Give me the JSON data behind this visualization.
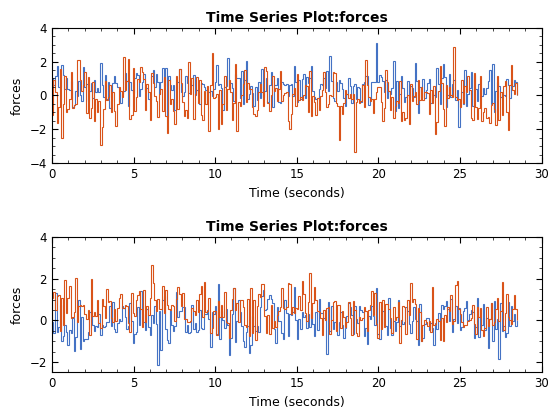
{
  "title": "Time Series Plot:forces",
  "xlabel": "Time (seconds)",
  "ylabel": "forces",
  "xlim": [
    0,
    30
  ],
  "ylim1": [
    -4,
    4
  ],
  "ylim2": [
    -2.5,
    4
  ],
  "yticks1": [
    -4,
    -2,
    0,
    2,
    4
  ],
  "yticks2": [
    -2,
    0,
    2,
    4
  ],
  "color1": "#4472c4",
  "color2": "#d95319",
  "n_points": 300,
  "seed1": 42,
  "seed2": 123,
  "seed3": 5,
  "seed4": 77,
  "t_end": 28.5,
  "figsize": [
    5.6,
    4.2
  ],
  "dpi": 100,
  "lw": 0.8
}
